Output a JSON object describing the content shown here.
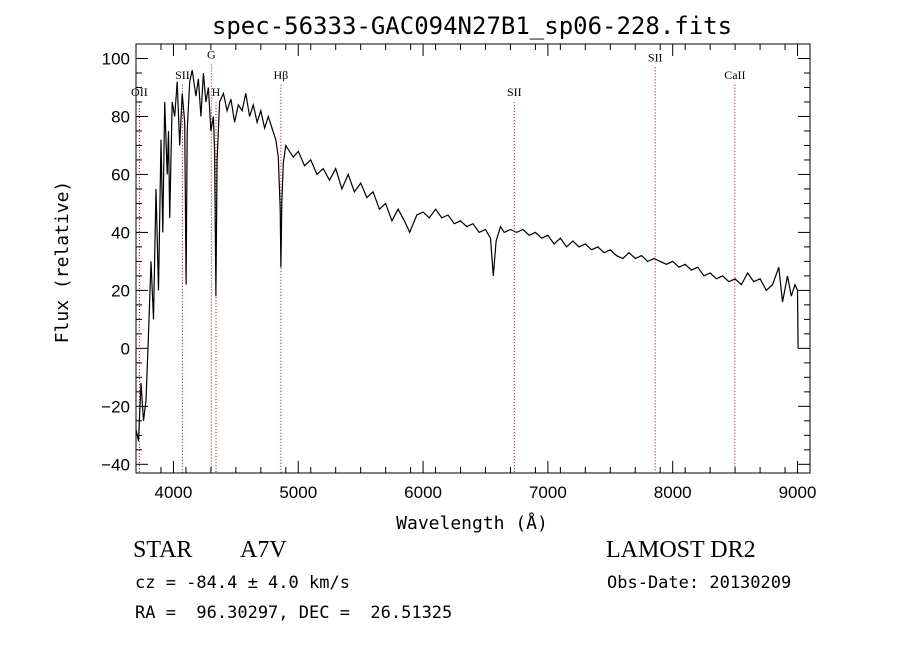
{
  "chart_data": {
    "type": "line",
    "title": "spec-56333-GAC094N27B1_sp06-228.fits",
    "xlabel": "Wavelength (Å)",
    "ylabel": "Flux (relative)",
    "xlim": [
      3700,
      9100
    ],
    "ylim": [
      -43,
      105
    ],
    "xticks": [
      4000,
      5000,
      6000,
      7000,
      8000,
      9000
    ],
    "yticks": [
      -40,
      -20,
      0,
      20,
      40,
      60,
      80,
      100
    ],
    "series": [
      {
        "color": "#000000",
        "points": [
          [
            3700,
            -28
          ],
          [
            3720,
            -32
          ],
          [
            3740,
            -12
          ],
          [
            3760,
            -25
          ],
          [
            3780,
            -18
          ],
          [
            3800,
            5
          ],
          [
            3820,
            30
          ],
          [
            3840,
            10
          ],
          [
            3860,
            55
          ],
          [
            3880,
            20
          ],
          [
            3900,
            72
          ],
          [
            3915,
            40
          ],
          [
            3930,
            85
          ],
          [
            3950,
            60
          ],
          [
            3960,
            75
          ],
          [
            3970,
            45
          ],
          [
            3990,
            85
          ],
          [
            4010,
            80
          ],
          [
            4030,
            92
          ],
          [
            4050,
            70
          ],
          [
            4070,
            88
          ],
          [
            4090,
            78
          ],
          [
            4101,
            22
          ],
          [
            4110,
            75
          ],
          [
            4130,
            92
          ],
          [
            4150,
            96
          ],
          [
            4180,
            87
          ],
          [
            4200,
            93
          ],
          [
            4220,
            80
          ],
          [
            4240,
            95
          ],
          [
            4260,
            85
          ],
          [
            4280,
            90
          ],
          [
            4300,
            75
          ],
          [
            4320,
            80
          ],
          [
            4330,
            68
          ],
          [
            4340,
            18
          ],
          [
            4350,
            65
          ],
          [
            4370,
            85
          ],
          [
            4400,
            88
          ],
          [
            4430,
            82
          ],
          [
            4460,
            86
          ],
          [
            4490,
            78
          ],
          [
            4520,
            84
          ],
          [
            4550,
            82
          ],
          [
            4580,
            88
          ],
          [
            4610,
            80
          ],
          [
            4640,
            84
          ],
          [
            4670,
            78
          ],
          [
            4700,
            82
          ],
          [
            4730,
            76
          ],
          [
            4760,
            80
          ],
          [
            4790,
            76
          ],
          [
            4820,
            72
          ],
          [
            4840,
            66
          ],
          [
            4855,
            48
          ],
          [
            4861,
            28
          ],
          [
            4868,
            50
          ],
          [
            4880,
            64
          ],
          [
            4900,
            70
          ],
          [
            4930,
            68
          ],
          [
            4960,
            66
          ],
          [
            5000,
            68
          ],
          [
            5050,
            63
          ],
          [
            5100,
            65
          ],
          [
            5150,
            60
          ],
          [
            5200,
            62
          ],
          [
            5250,
            58
          ],
          [
            5300,
            62
          ],
          [
            5350,
            55
          ],
          [
            5400,
            60
          ],
          [
            5450,
            54
          ],
          [
            5500,
            57
          ],
          [
            5550,
            52
          ],
          [
            5600,
            54
          ],
          [
            5650,
            48
          ],
          [
            5700,
            50
          ],
          [
            5750,
            44
          ],
          [
            5800,
            48
          ],
          [
            5850,
            44
          ],
          [
            5893,
            40
          ],
          [
            5950,
            46
          ],
          [
            6000,
            47
          ],
          [
            6050,
            45
          ],
          [
            6100,
            48
          ],
          [
            6150,
            45
          ],
          [
            6200,
            46
          ],
          [
            6250,
            43
          ],
          [
            6300,
            44
          ],
          [
            6350,
            42
          ],
          [
            6400,
            43
          ],
          [
            6450,
            40
          ],
          [
            6500,
            41
          ],
          [
            6540,
            38
          ],
          [
            6563,
            25
          ],
          [
            6585,
            37
          ],
          [
            6620,
            42
          ],
          [
            6650,
            40
          ],
          [
            6700,
            41
          ],
          [
            6750,
            40
          ],
          [
            6800,
            41
          ],
          [
            6850,
            39
          ],
          [
            6900,
            40
          ],
          [
            6950,
            38
          ],
          [
            7000,
            39
          ],
          [
            7050,
            36
          ],
          [
            7100,
            38
          ],
          [
            7150,
            35
          ],
          [
            7200,
            37
          ],
          [
            7250,
            35
          ],
          [
            7300,
            36
          ],
          [
            7350,
            34
          ],
          [
            7400,
            35
          ],
          [
            7450,
            33
          ],
          [
            7500,
            34
          ],
          [
            7550,
            32
          ],
          [
            7600,
            31
          ],
          [
            7650,
            33
          ],
          [
            7700,
            31
          ],
          [
            7750,
            32
          ],
          [
            7800,
            30
          ],
          [
            7850,
            31
          ],
          [
            7900,
            30
          ],
          [
            7950,
            29
          ],
          [
            8000,
            30
          ],
          [
            8050,
            28
          ],
          [
            8100,
            29
          ],
          [
            8150,
            27
          ],
          [
            8200,
            28
          ],
          [
            8250,
            25
          ],
          [
            8300,
            26
          ],
          [
            8350,
            24
          ],
          [
            8400,
            25
          ],
          [
            8450,
            23
          ],
          [
            8500,
            24
          ],
          [
            8550,
            22
          ],
          [
            8600,
            26
          ],
          [
            8650,
            23
          ],
          [
            8700,
            24
          ],
          [
            8750,
            20
          ],
          [
            8800,
            22
          ],
          [
            8850,
            28
          ],
          [
            8880,
            16
          ],
          [
            8920,
            25
          ],
          [
            8950,
            18
          ],
          [
            8980,
            22
          ],
          [
            9000,
            20
          ],
          [
            9005,
            0
          ]
        ]
      }
    ],
    "lines": [
      {
        "label": "OII",
        "x": 3727,
        "label_y": 87
      },
      {
        "label": "SII",
        "x": 4072,
        "label_y": 93
      },
      {
        "label": "G",
        "x": 4304,
        "label_y": 100
      },
      {
        "label": "H",
        "x": 4341,
        "label_y": 87
      },
      {
        "label": "Hβ",
        "x": 4861,
        "label_y": 93
      },
      {
        "label": "SII",
        "x": 6731,
        "label_y": 87
      },
      {
        "label": "SII",
        "x": 7860,
        "label_y": 99
      },
      {
        "label": "CaII",
        "x": 8498,
        "label_y": 93
      }
    ],
    "line_color": "#aa0000"
  },
  "info": {
    "object": "STAR",
    "subclass": "A7V",
    "survey": "LAMOST DR2",
    "cz": "cz = -84.4 ± 4.0 km/s",
    "obs_date": "Obs-Date: 20130209",
    "coords": "RA =  96.30297, DEC =  26.51325"
  }
}
